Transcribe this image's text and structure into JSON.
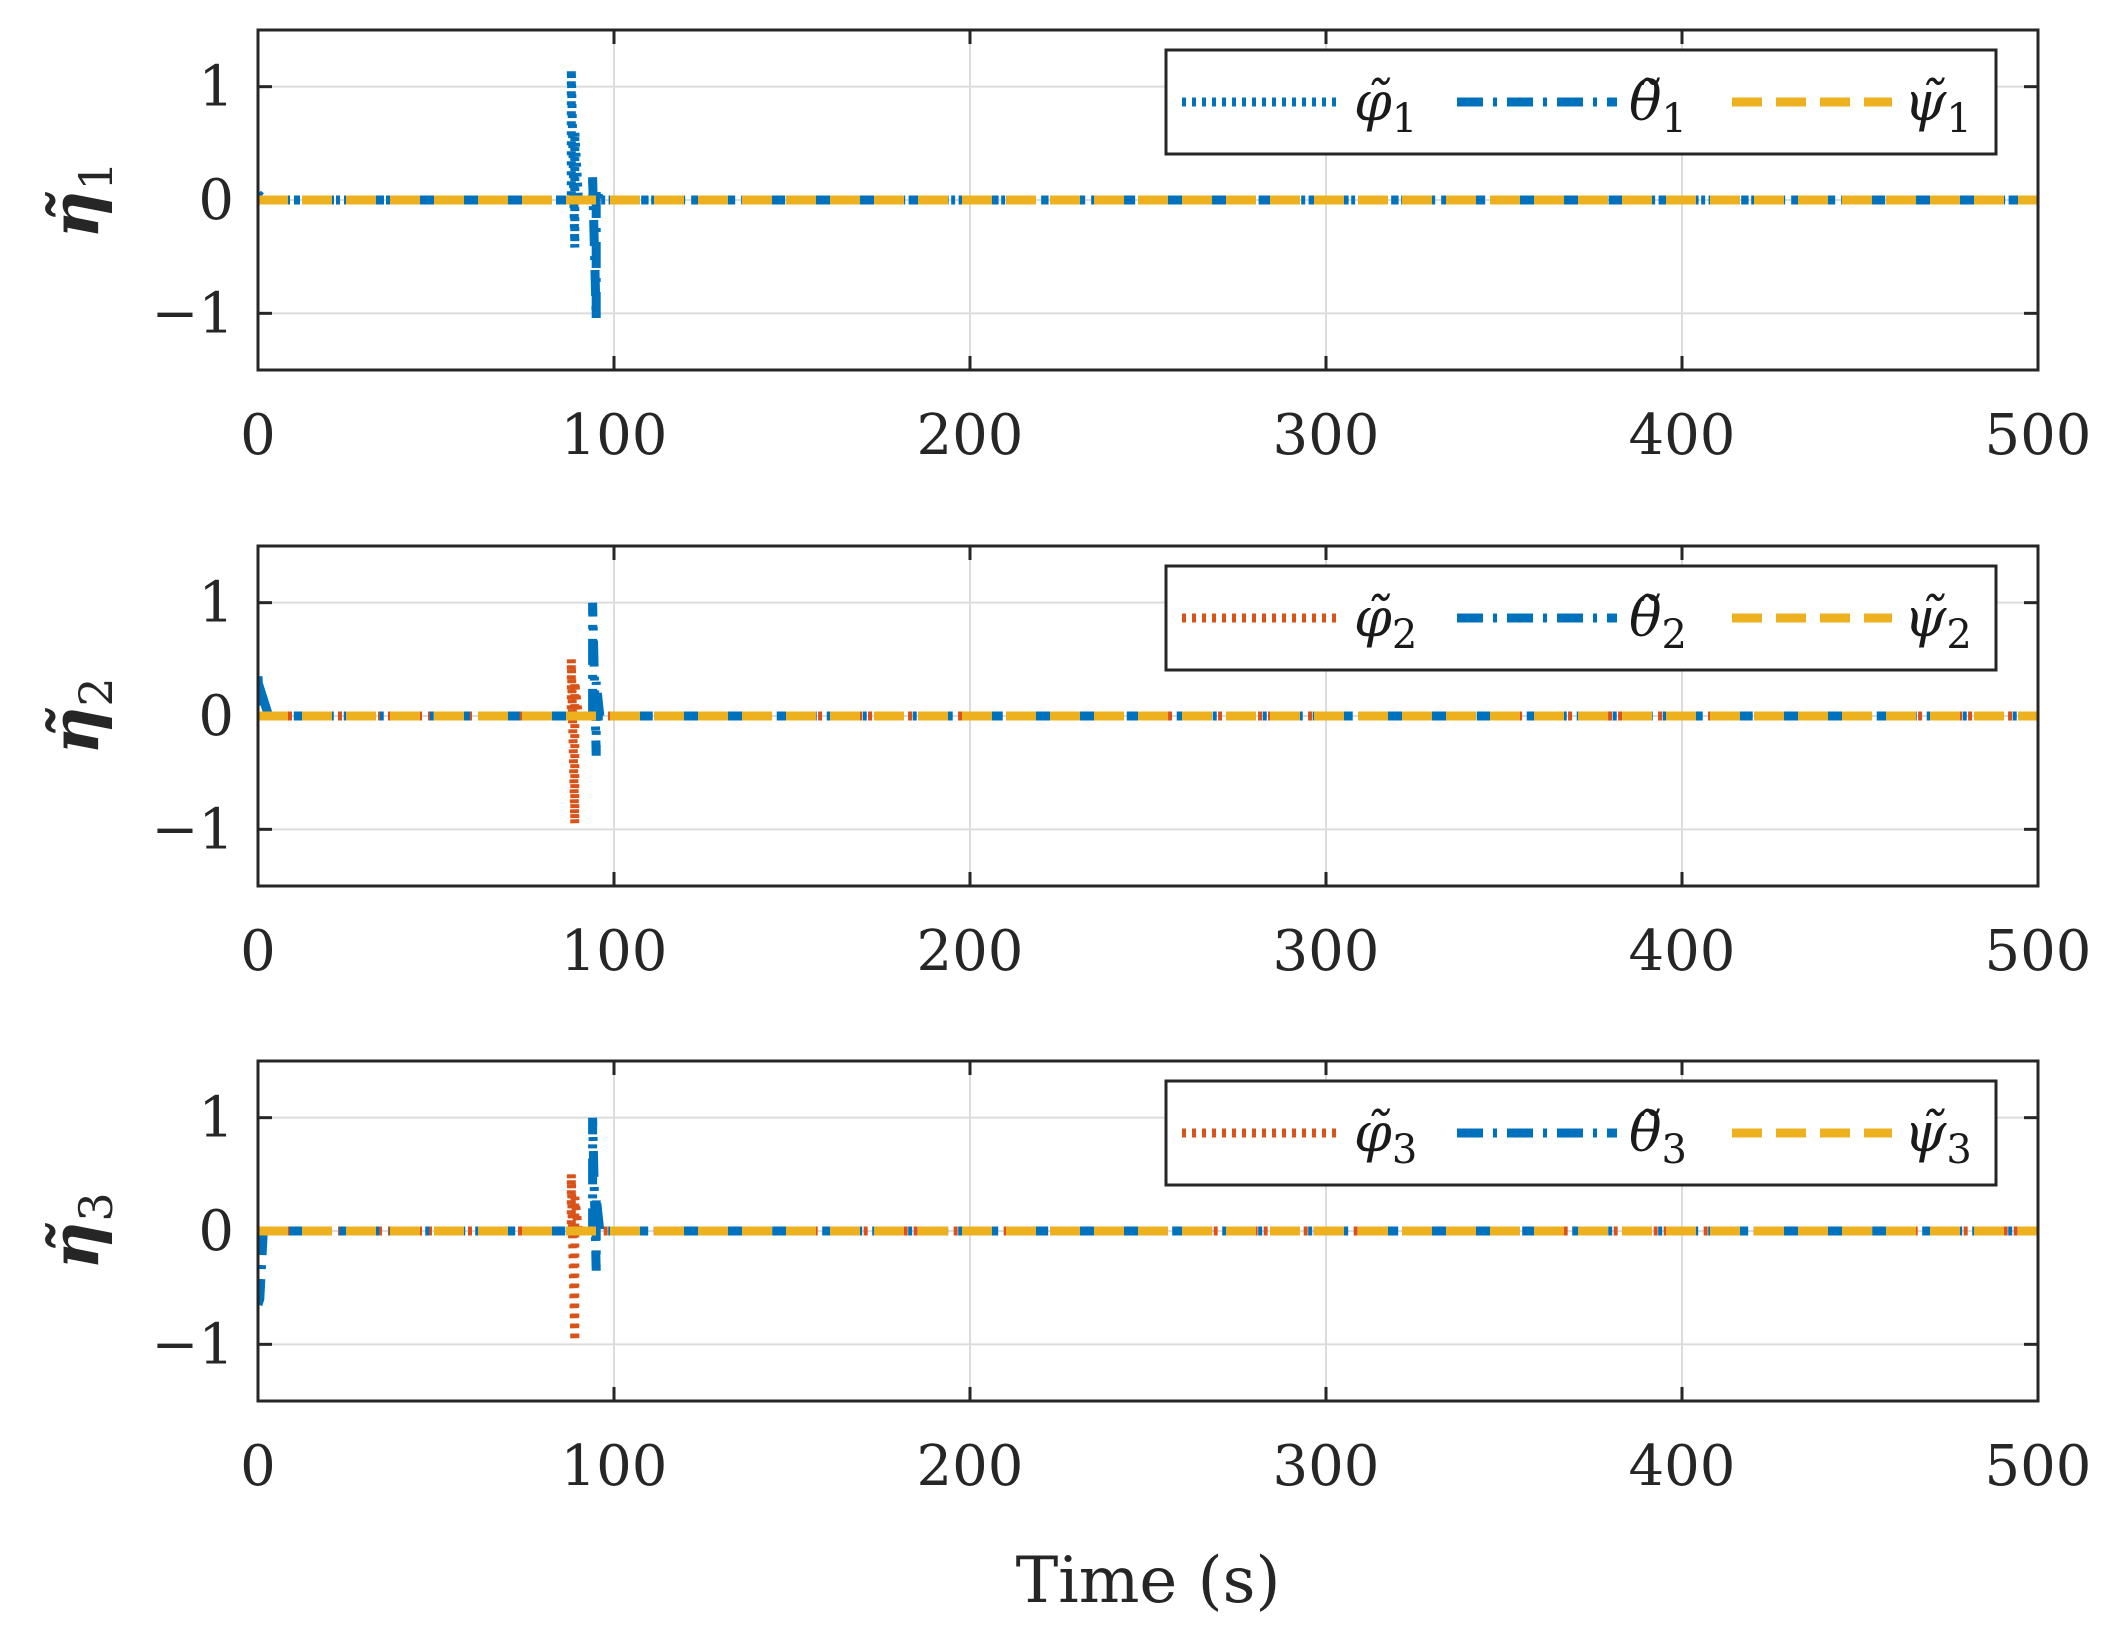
{
  "chart_data": [
    {
      "type": "line",
      "ylabel": "η̃",
      "ylabel_sub": "1",
      "xlabel": "",
      "xlim": [
        0,
        500
      ],
      "ylim": [
        -1.5,
        1.5
      ],
      "xticks": [
        "0",
        "100",
        "200",
        "300",
        "400",
        "500"
      ],
      "yticks": [
        "−1",
        "0",
        "1"
      ],
      "grid": true,
      "legend_position": "top-right",
      "series": [
        {
          "name": "φ̃",
          "sub": "1",
          "color": "#0072BD",
          "style": "dotted",
          "x": [
            0,
            2,
            3,
            88,
            88,
            89,
            89,
            90,
            90,
            500
          ],
          "y": [
            0.05,
            0.0,
            0.0,
            0.0,
            1.15,
            -0.42,
            0.6,
            0.0,
            0.0,
            0.0
          ]
        },
        {
          "name": "θ̃",
          "sub": "1",
          "color": "#0072BD",
          "style": "dashdot",
          "x": [
            0,
            94,
            94,
            95,
            95,
            96,
            96,
            500
          ],
          "y": [
            0.0,
            0.0,
            0.2,
            -1.05,
            0.1,
            0.0,
            0.0,
            0.0
          ]
        },
        {
          "name": "ψ̃",
          "sub": "1",
          "color": "#EDB120",
          "style": "dashed",
          "x": [
            0,
            500
          ],
          "y": [
            0.0,
            0.0
          ]
        }
      ]
    },
    {
      "type": "line",
      "ylabel": "η̃",
      "ylabel_sub": "2",
      "xlabel": "",
      "xlim": [
        0,
        500
      ],
      "ylim": [
        -1.5,
        1.5
      ],
      "xticks": [
        "0",
        "100",
        "200",
        "300",
        "400",
        "500"
      ],
      "yticks": [
        "−1",
        "0",
        "1"
      ],
      "grid": true,
      "legend_position": "top-right",
      "series": [
        {
          "name": "φ̃",
          "sub": "2",
          "color": "#D95319",
          "style": "dotted",
          "x": [
            0,
            88,
            88,
            89,
            89,
            90,
            500
          ],
          "y": [
            0.0,
            0.0,
            0.5,
            -0.95,
            0.3,
            0.0,
            0.0
          ]
        },
        {
          "name": "θ̃",
          "sub": "2",
          "color": "#0072BD",
          "style": "dashdot",
          "x": [
            0,
            0.5,
            1.5,
            3,
            94,
            94,
            95,
            95,
            96,
            500
          ],
          "y": [
            0.35,
            0.0,
            0.15,
            0.0,
            0.0,
            1.0,
            -0.35,
            0.3,
            0.0,
            0.0
          ]
        },
        {
          "name": "ψ̃",
          "sub": "2",
          "color": "#EDB120",
          "style": "dashed",
          "x": [
            0,
            500
          ],
          "y": [
            0.0,
            0.0
          ]
        }
      ]
    },
    {
      "type": "line",
      "ylabel": "η̃",
      "ylabel_sub": "3",
      "xlabel": "Time (s)",
      "xlim": [
        0,
        500
      ],
      "ylim": [
        -1.5,
        1.5
      ],
      "xticks": [
        "0",
        "100",
        "200",
        "300",
        "400",
        "500"
      ],
      "yticks": [
        "−1",
        "0",
        "1"
      ],
      "grid": true,
      "legend_position": "top-right",
      "series": [
        {
          "name": "φ̃",
          "sub": "3",
          "color": "#D95319",
          "style": "dotted",
          "x": [
            0,
            88,
            88,
            89,
            89,
            90,
            500
          ],
          "y": [
            0.0,
            0.0,
            0.5,
            -0.97,
            0.3,
            0.0,
            0.0
          ]
        },
        {
          "name": "θ̃",
          "sub": "3",
          "color": "#0072BD",
          "style": "dashdot",
          "x": [
            0,
            0.5,
            1.5,
            3,
            94,
            94,
            95,
            95,
            96,
            500
          ],
          "y": [
            -0.65,
            -0.6,
            0.0,
            0.0,
            0.0,
            1.0,
            -0.35,
            0.3,
            0.0,
            0.0
          ]
        },
        {
          "name": "ψ̃",
          "sub": "3",
          "color": "#EDB120",
          "style": "dashed",
          "x": [
            0,
            500
          ],
          "y": [
            0.0,
            0.0
          ]
        }
      ]
    }
  ]
}
